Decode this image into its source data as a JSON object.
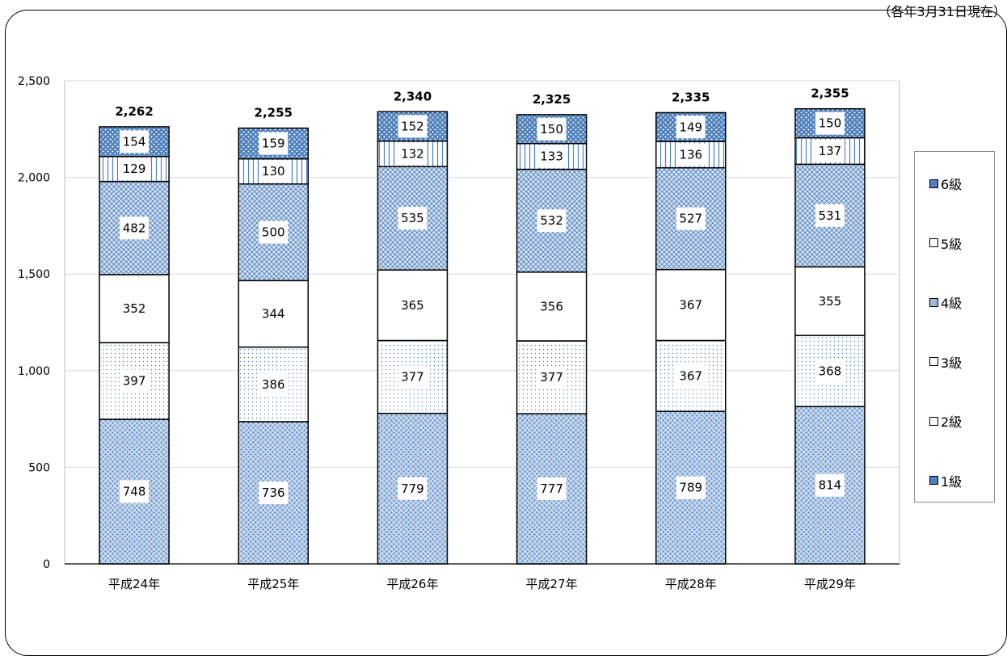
{
  "corner_note": "（各年3月31日現在）",
  "chart_data": {
    "type": "bar",
    "stacked": true,
    "categories": [
      "平成24年",
      "平成25年",
      "平成26年",
      "平成27年",
      "平成28年",
      "平成29年"
    ],
    "series": [
      {
        "name": "1級",
        "values": [
          748,
          736,
          779,
          777,
          789,
          814
        ]
      },
      {
        "name": "2級",
        "values": [
          397,
          386,
          377,
          377,
          367,
          368
        ]
      },
      {
        "name": "3級",
        "values": [
          352,
          344,
          365,
          356,
          367,
          355
        ]
      },
      {
        "name": "4級",
        "values": [
          482,
          500,
          535,
          532,
          527,
          531
        ]
      },
      {
        "name": "5級",
        "values": [
          129,
          130,
          132,
          133,
          136,
          137
        ]
      },
      {
        "name": "6級",
        "values": [
          154,
          159,
          152,
          150,
          149,
          150
        ]
      }
    ],
    "totals": [
      2262,
      2255,
      2340,
      2325,
      2335,
      2355
    ],
    "ylim": [
      0,
      2500
    ],
    "yticks": [
      0,
      500,
      1000,
      1500,
      2000,
      2500
    ],
    "ytick_labels": [
      "0",
      "500",
      "1,000",
      "1,500",
      "2,000",
      "2,500"
    ],
    "total_labels": [
      "2,262",
      "2,255",
      "2,340",
      "2,325",
      "2,335",
      "2,355"
    ],
    "xlabel": "",
    "ylabel": "",
    "grid": true,
    "legend_position": "right",
    "legend_order": [
      "6級",
      "5級",
      "4級",
      "3級",
      "2級",
      "1級"
    ],
    "colors": {
      "accent": "#4f81bd",
      "grid": "#d9d9d9",
      "frame": "#000000"
    }
  }
}
